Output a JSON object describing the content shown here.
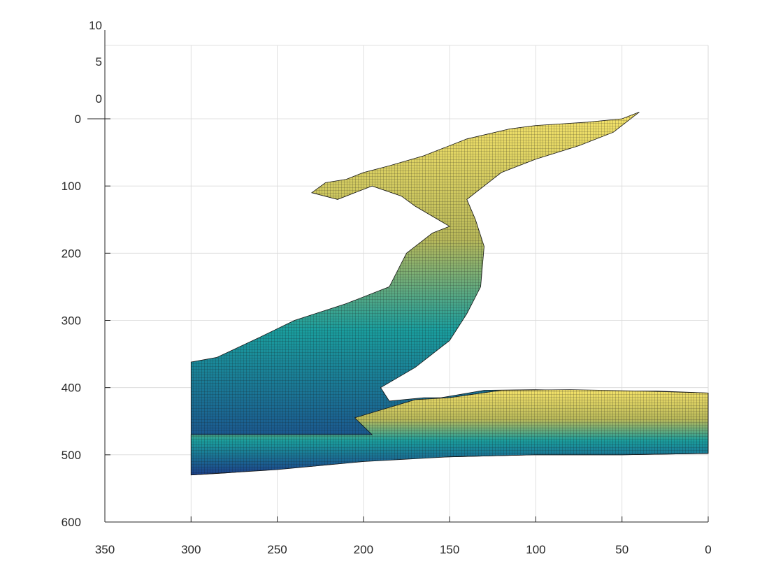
{
  "chart_data": {
    "type": "surface",
    "title": "",
    "xlabel": "",
    "ylabel": "",
    "zlabel": "",
    "xlim": [
      0,
      350
    ],
    "ylim": [
      0,
      600
    ],
    "zlim": [
      0,
      10
    ],
    "x_reversed": true,
    "y_reversed": true,
    "x_ticks": [
      350,
      300,
      250,
      200,
      150,
      100,
      50,
      0
    ],
    "x_tick_labels": [
      "350",
      "300",
      "250",
      "200",
      "150",
      "100",
      "50",
      "0"
    ],
    "y_ticks": [
      0,
      100,
      200,
      300,
      400,
      500,
      600
    ],
    "y_tick_labels": [
      "0",
      "100",
      "200",
      "300",
      "400",
      "500",
      "600"
    ],
    "z_ticks": [
      0,
      5,
      10
    ],
    "z_tick_labels": [
      "0",
      "5",
      "10"
    ],
    "grid": true,
    "colormap": "parula",
    "colors": {
      "low": "#1b3f8a",
      "mid": "#1a9e9e",
      "high": "#f5e36a",
      "mesh": "#141414"
    },
    "surface_outline_upper": [
      [
        40,
        -10
      ],
      [
        50,
        0
      ],
      [
        70,
        5
      ],
      [
        100,
        10
      ],
      [
        115,
        15
      ],
      [
        140,
        30
      ],
      [
        165,
        55
      ],
      [
        185,
        70
      ],
      [
        200,
        80
      ],
      [
        210,
        90
      ],
      [
        222,
        95
      ],
      [
        230,
        110
      ],
      [
        215,
        120
      ],
      [
        195,
        100
      ],
      [
        178,
        115
      ],
      [
        170,
        130
      ],
      [
        150,
        160
      ],
      [
        160,
        170
      ],
      [
        165,
        180
      ],
      [
        175,
        200
      ],
      [
        185,
        250
      ],
      [
        210,
        275
      ],
      [
        240,
        300
      ],
      [
        260,
        325
      ],
      [
        285,
        355
      ],
      [
        300,
        362
      ],
      [
        300,
        530
      ],
      [
        280,
        527
      ],
      [
        230,
        517
      ],
      [
        180,
        505
      ],
      [
        100,
        500
      ],
      [
        50,
        500
      ],
      [
        0,
        498
      ],
      [
        0,
        408
      ],
      [
        30,
        405
      ],
      [
        60,
        405
      ],
      [
        100,
        403
      ],
      [
        130,
        404
      ],
      [
        155,
        415
      ],
      [
        165,
        415
      ],
      [
        185,
        420
      ],
      [
        190,
        400
      ],
      [
        170,
        370
      ],
      [
        150,
        330
      ],
      [
        140,
        290
      ],
      [
        132,
        250
      ],
      [
        130,
        190
      ],
      [
        135,
        150
      ],
      [
        140,
        120
      ],
      [
        120,
        80
      ],
      [
        100,
        60
      ],
      [
        75,
        40
      ],
      [
        55,
        20
      ],
      [
        40,
        -10
      ]
    ],
    "surface_outline_lower": [
      [
        0,
        408
      ],
      [
        40,
        405
      ],
      [
        80,
        403
      ],
      [
        120,
        404
      ],
      [
        150,
        415
      ],
      [
        170,
        418
      ],
      [
        205,
        445
      ],
      [
        195,
        470
      ],
      [
        300,
        470
      ],
      [
        300,
        530
      ],
      [
        250,
        522
      ],
      [
        200,
        510
      ],
      [
        150,
        503
      ],
      [
        100,
        500
      ],
      [
        50,
        500
      ],
      [
        0,
        498
      ]
    ]
  }
}
